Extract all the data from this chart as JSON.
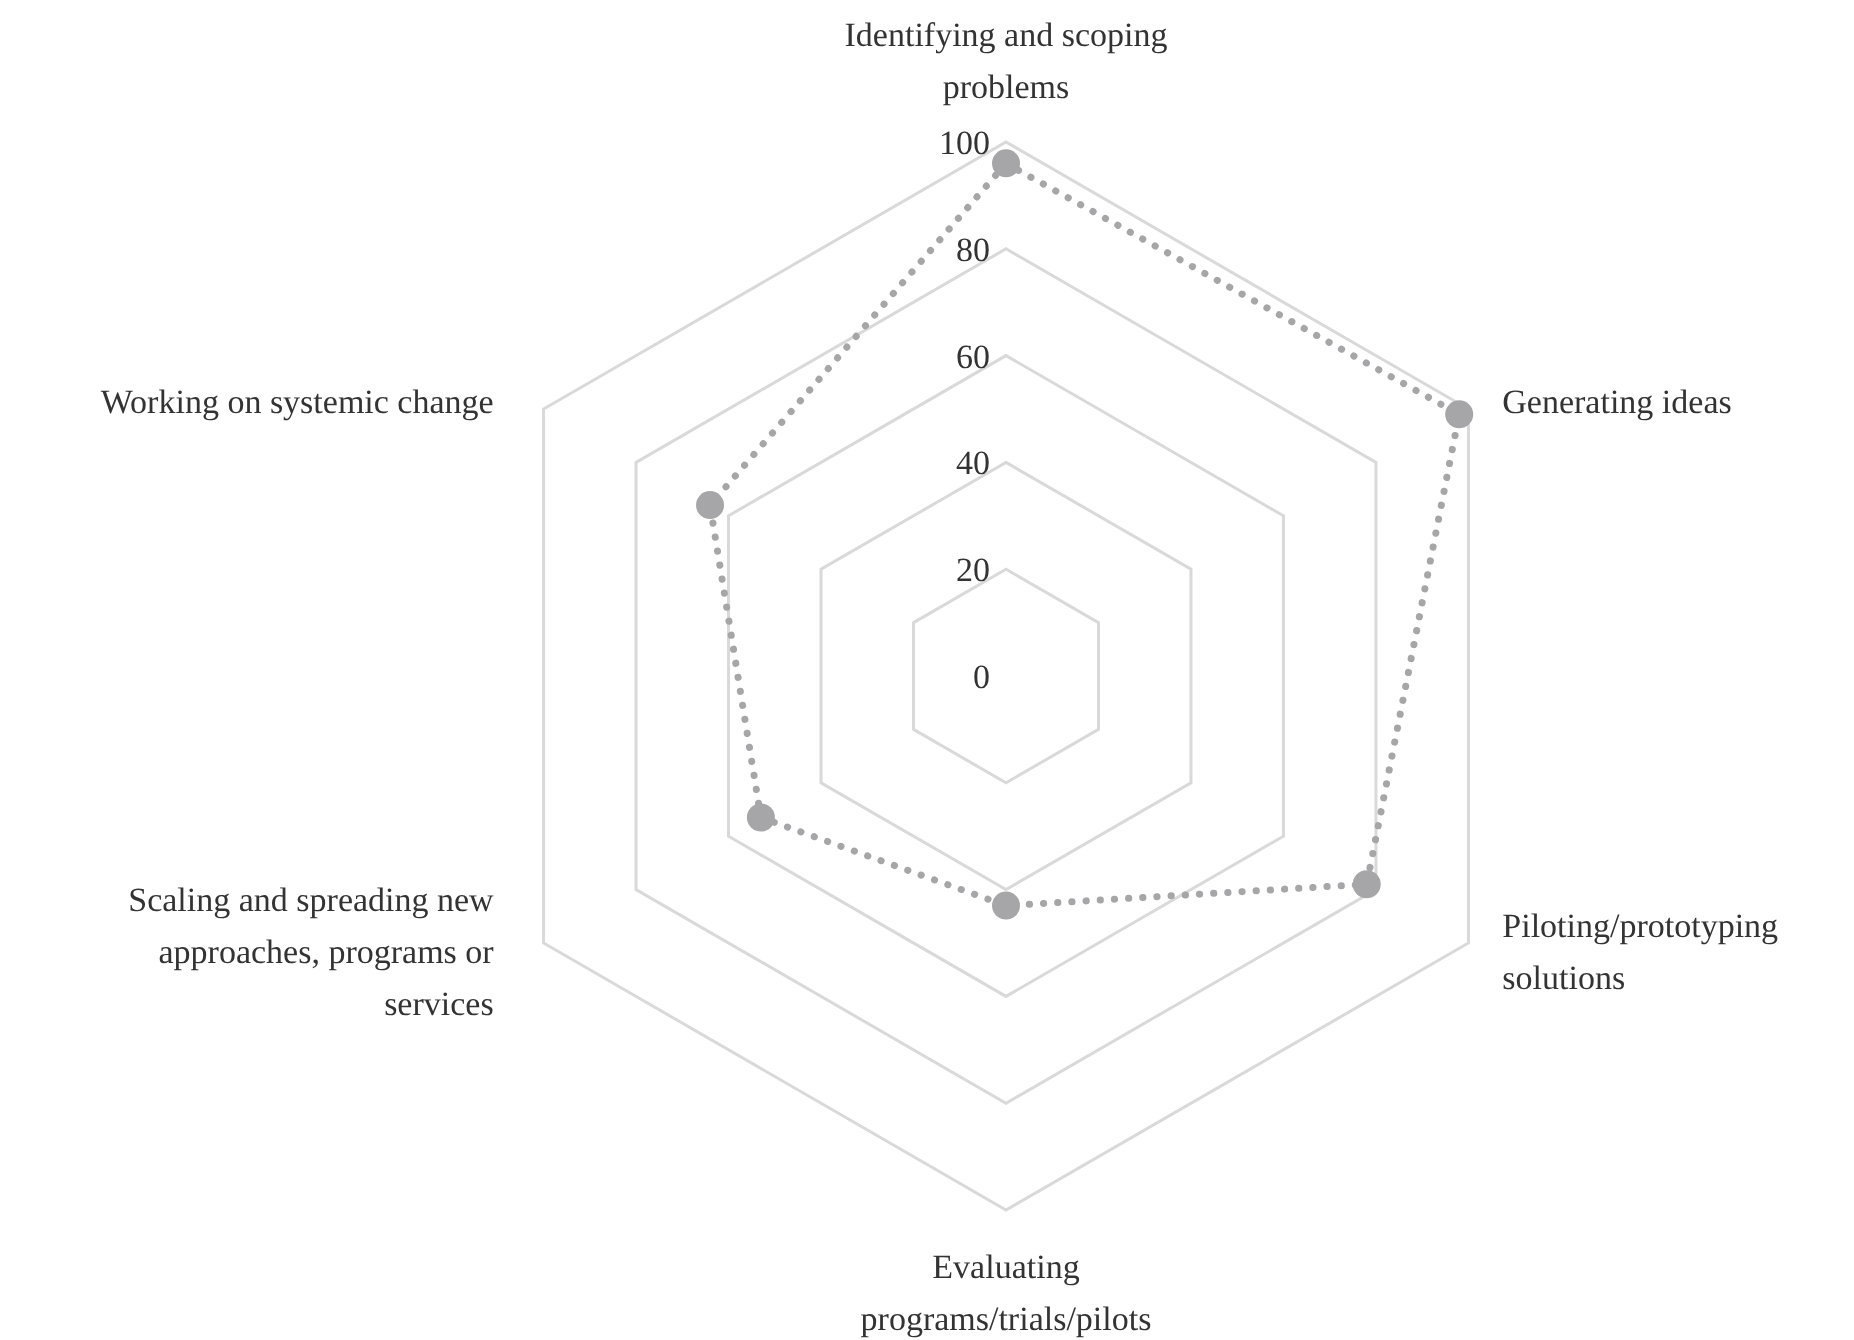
{
  "chart_data": {
    "type": "radar",
    "categories": [
      "Identifying and scoping problems",
      "Generating ideas",
      "Piloting/prototyping solutions",
      "Evaluating programs/trials/pilots",
      "Scaling and spreading new approaches, programs or services",
      "Working on systemic change"
    ],
    "series": [
      {
        "color": "#a6a6a8",
        "values": [
          96,
          98,
          78,
          43,
          53,
          64
        ]
      }
    ],
    "ylim": [
      0,
      100
    ],
    "yticks": [
      0,
      20,
      40,
      60,
      80,
      100
    ],
    "grid": true,
    "marker": "circle",
    "line_style": "dotted",
    "legend": false
  }
}
